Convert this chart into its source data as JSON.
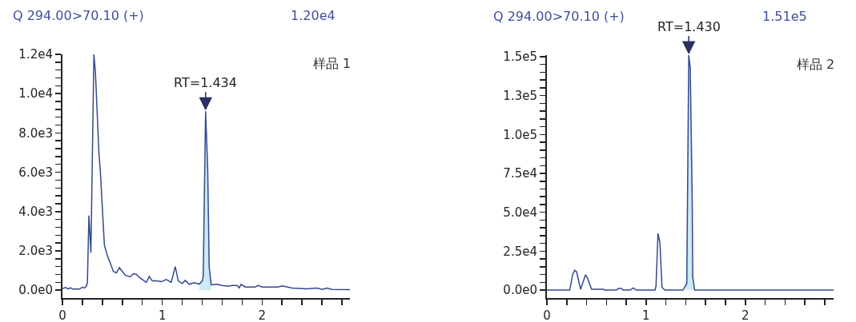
{
  "chart_data": [
    {
      "type": "line",
      "annotations": [
        "Q 294.00>70.10 (+)",
        "1.20e4",
        "样品 1",
        {
          "text": "RT=1.434",
          "x": 1.434,
          "y": 9100
        }
      ],
      "series": [
        {
          "color": "#34498e",
          "x": [
            0,
            0.03,
            0.06,
            0.08,
            0.1,
            0.17,
            0.2,
            0.22,
            0.24,
            0.25,
            0.265,
            0.285,
            0.315,
            0.33,
            0.365,
            0.38,
            0.42,
            0.45,
            0.47,
            0.51,
            0.54,
            0.57,
            0.6,
            0.63,
            0.68,
            0.71,
            0.74,
            0.77,
            0.84,
            0.87,
            0.9,
            0.95,
            0.99,
            1.04,
            1.09,
            1.13,
            1.16,
            1.2,
            1.23,
            1.27,
            1.32,
            1.37,
            1.4,
            1.41,
            1.434,
            1.455,
            1.47,
            1.49,
            1.55,
            1.6,
            1.66,
            1.7,
            1.75,
            1.77,
            1.79,
            1.83,
            1.93,
            1.96,
            2.0,
            2.16,
            2.2,
            2.3,
            2.45,
            2.55,
            2.6,
            2.65,
            2.7,
            2.88
          ],
          "values": [
            80,
            140,
            60,
            120,
            60,
            60,
            150,
            110,
            200,
            400,
            3800,
            1900,
            12000,
            11100,
            7000,
            6000,
            2300,
            1750,
            1500,
            950,
            880,
            1150,
            950,
            750,
            680,
            840,
            810,
            650,
            400,
            700,
            470,
            470,
            430,
            540,
            400,
            1200,
            470,
            340,
            500,
            300,
            380,
            310,
            470,
            680,
            9100,
            6200,
            1200,
            270,
            300,
            240,
            200,
            240,
            240,
            110,
            300,
            160,
            160,
            240,
            160,
            160,
            220,
            110,
            70,
            110,
            40,
            110,
            40,
            30
          ]
        },
        {
          "type": "area",
          "color": "#cde9f1",
          "x": [
            1.37,
            1.4,
            1.41,
            1.434,
            1.455,
            1.47,
            1.49
          ],
          "values": [
            310,
            470,
            680,
            9100,
            6200,
            1200,
            270
          ]
        }
      ],
      "xlim": [
        0,
        2.88
      ],
      "xticks": [
        0,
        {
          "value": 0.2,
          "label": null
        },
        {
          "value": 0.4,
          "label": null
        },
        {
          "value": 0.6,
          "label": null
        },
        {
          "value": 0.8,
          "label": null
        },
        1,
        {
          "value": 1.2,
          "label": null
        },
        {
          "value": 1.4,
          "label": null
        },
        {
          "value": 1.6,
          "label": null
        },
        {
          "value": 1.8,
          "label": null
        },
        2,
        {
          "value": 2.2,
          "label": null
        },
        {
          "value": 2.4,
          "label": null
        },
        {
          "value": 2.6,
          "label": null
        },
        {
          "value": 2.8,
          "label": null
        }
      ],
      "ylim": [
        -400,
        12000
      ],
      "yticks": [
        {
          "value": 0,
          "label": "0.0e0"
        },
        {
          "value": 400,
          "label": null
        },
        {
          "value": 800,
          "label": null
        },
        {
          "value": 1200,
          "label": null
        },
        {
          "value": 1600,
          "label": null
        },
        {
          "value": 2000,
          "label": "2.0e3"
        },
        {
          "value": 2400,
          "label": null
        },
        {
          "value": 2800,
          "label": null
        },
        {
          "value": 3200,
          "label": null
        },
        {
          "value": 3600,
          "label": null
        },
        {
          "value": 4000,
          "label": "4.0e3"
        },
        {
          "value": 4400,
          "label": null
        },
        {
          "value": 4800,
          "label": null
        },
        {
          "value": 5200,
          "label": null
        },
        {
          "value": 5600,
          "label": null
        },
        {
          "value": 6000,
          "label": "6.0e3"
        },
        {
          "value": 6400,
          "label": null
        },
        {
          "value": 6800,
          "label": null
        },
        {
          "value": 7200,
          "label": null
        },
        {
          "value": 7600,
          "label": null
        },
        {
          "value": 8000,
          "label": "8.0e3"
        },
        {
          "value": 8400,
          "label": null
        },
        {
          "value": 8800,
          "label": null
        },
        {
          "value": 9200,
          "label": null
        },
        {
          "value": 9600,
          "label": null
        },
        {
          "value": 10000,
          "label": "1.0e4"
        },
        {
          "value": 10400,
          "label": null
        },
        {
          "value": 10800,
          "label": null
        },
        {
          "value": 11200,
          "label": null
        },
        {
          "value": 11600,
          "label": null
        },
        {
          "value": 12000,
          "label": "1.2e4"
        }
      ],
      "grid": false,
      "marker": "none"
    },
    {
      "type": "line",
      "annotations": [
        "Q 294.00>70.10 (+)",
        "1.51e5",
        "样品 2",
        {
          "text": "RT=1.430",
          "x": 1.43,
          "y": 151000
        }
      ],
      "series": [
        {
          "color": "#34498e",
          "x": [
            0,
            0.23,
            0.26,
            0.28,
            0.3,
            0.34,
            0.39,
            0.41,
            0.45,
            0.57,
            0.58,
            0.7,
            0.72,
            0.75,
            0.77,
            0.84,
            0.87,
            0.9,
            1.09,
            1.1,
            1.12,
            1.14,
            1.16,
            1.19,
            1.37,
            1.39,
            1.41,
            1.43,
            1.445,
            1.465,
            1.47,
            1.49,
            2.89
          ],
          "values": [
            0,
            0,
            10200,
            12800,
            11600,
            500,
            9900,
            7600,
            500,
            500,
            0,
            0,
            1000,
            1000,
            0,
            0,
            1400,
            0,
            0,
            2500,
            36500,
            30000,
            1700,
            0,
            0,
            2000,
            4300,
            151000,
            143000,
            58000,
            8500,
            0,
            0
          ]
        },
        {
          "type": "area",
          "color": "#cde9f1",
          "x": [
            1.39,
            1.41,
            1.43,
            1.445,
            1.465,
            1.47,
            1.49
          ],
          "values": [
            2000,
            4300,
            151000,
            143000,
            58000,
            8500,
            0
          ]
        }
      ],
      "xlim": [
        0,
        2.89
      ],
      "xticks": [
        0,
        {
          "value": 0.2,
          "label": null
        },
        {
          "value": 0.4,
          "label": null
        },
        {
          "value": 0.6,
          "label": null
        },
        {
          "value": 0.8,
          "label": null
        },
        1,
        {
          "value": 1.2,
          "label": null
        },
        {
          "value": 1.4,
          "label": null
        },
        {
          "value": 1.6,
          "label": null
        },
        {
          "value": 1.8,
          "label": null
        },
        2,
        {
          "value": 2.2,
          "label": null
        },
        {
          "value": 2.4,
          "label": null
        },
        {
          "value": 2.6,
          "label": null
        },
        {
          "value": 2.8,
          "label": null
        }
      ],
      "ylim": [
        -5100,
        151000
      ],
      "yticks": [
        {
          "value": 0,
          "label": "0.0e0"
        },
        {
          "value": 5000,
          "label": null
        },
        {
          "value": 10000,
          "label": null
        },
        {
          "value": 15000,
          "label": null
        },
        {
          "value": 20000,
          "label": null
        },
        {
          "value": 25000,
          "label": "2.5e4"
        },
        {
          "value": 30000,
          "label": null
        },
        {
          "value": 35000,
          "label": null
        },
        {
          "value": 40000,
          "label": null
        },
        {
          "value": 45000,
          "label": null
        },
        {
          "value": 50000,
          "label": "5.0e4"
        },
        {
          "value": 55000,
          "label": null
        },
        {
          "value": 60000,
          "label": null
        },
        {
          "value": 65000,
          "label": null
        },
        {
          "value": 70000,
          "label": null
        },
        {
          "value": 75000,
          "label": "7.5e4"
        },
        {
          "value": 80000,
          "label": null
        },
        {
          "value": 85000,
          "label": null
        },
        {
          "value": 90000,
          "label": null
        },
        {
          "value": 95000,
          "label": null
        },
        {
          "value": 100000,
          "label": "1.0e5"
        },
        {
          "value": 105000,
          "label": null
        },
        {
          "value": 110000,
          "label": null
        },
        {
          "value": 115000,
          "label": null
        },
        {
          "value": 120000,
          "label": null
        },
        {
          "value": 125000,
          "label": "1.3e5"
        },
        {
          "value": 130000,
          "label": null
        },
        {
          "value": 135000,
          "label": null
        },
        {
          "value": 140000,
          "label": null
        },
        {
          "value": 145000,
          "label": null
        },
        {
          "value": 150000,
          "label": "1.5e5"
        }
      ],
      "grid": false,
      "marker": "none"
    }
  ]
}
